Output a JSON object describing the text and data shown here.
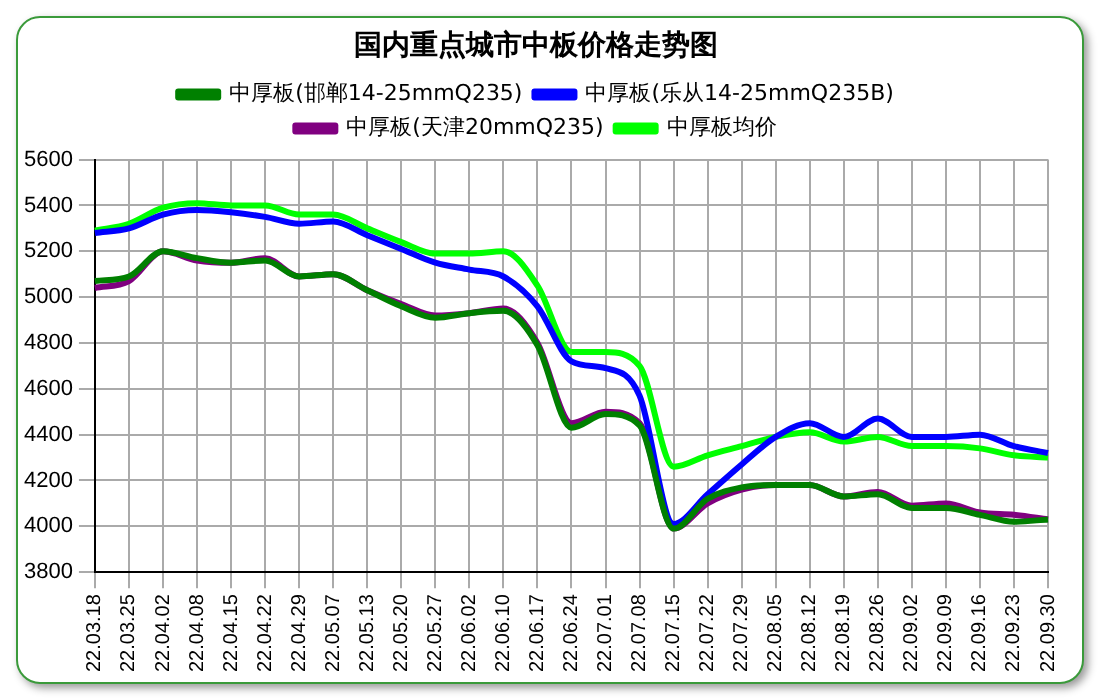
{
  "chart_data": {
    "type": "line",
    "title": "国内重点城市中板价格走势图",
    "categories": [
      "22.03.18",
      "22.03.25",
      "22.04.02",
      "22.04.08",
      "22.04.15",
      "22.04.22",
      "22.04.29",
      "22.05.07",
      "22.05.13",
      "22.05.20",
      "22.05.27",
      "22.06.02",
      "22.06.10",
      "22.06.17",
      "22.06.24",
      "22.07.01",
      "22.07.08",
      "22.07.15",
      "22.07.22",
      "22.07.29",
      "22.08.05",
      "22.08.12",
      "22.08.19",
      "22.08.26",
      "22.09.02",
      "22.09.09",
      "22.09.16",
      "22.09.23",
      "22.09.30"
    ],
    "series": [
      {
        "name": "中厚板(邯郸14-25mmQ235)",
        "color": "#008000",
        "values": [
          5070,
          5090,
          5200,
          5170,
          5150,
          5160,
          5090,
          5100,
          5030,
          4960,
          4910,
          4930,
          4940,
          4790,
          4430,
          4490,
          4440,
          3990,
          4120,
          4170,
          4180,
          4180,
          4130,
          4140,
          4080,
          4080,
          4050,
          4020,
          4030
        ]
      },
      {
        "name": "中厚板(乐从14-25mmQ235B)",
        "color": "#0000ff",
        "values": [
          5280,
          5300,
          5360,
          5380,
          5370,
          5350,
          5320,
          5330,
          5270,
          5210,
          5150,
          5120,
          5090,
          4960,
          4720,
          4690,
          4570,
          4010,
          4140,
          4270,
          4390,
          4450,
          4390,
          4470,
          4390,
          4390,
          4400,
          4350,
          4320
        ]
      },
      {
        "name": "中厚板(天津20mmQ235)",
        "color": "#800080",
        "values": [
          5040,
          5070,
          5200,
          5160,
          5150,
          5170,
          5090,
          5100,
          5030,
          4970,
          4920,
          4930,
          4950,
          4800,
          4450,
          4500,
          4450,
          3990,
          4100,
          4160,
          4180,
          4180,
          4130,
          4150,
          4090,
          4100,
          4060,
          4050,
          4030
        ]
      },
      {
        "name": "中厚板均价",
        "color": "#00ff00",
        "values": [
          5290,
          5320,
          5390,
          5410,
          5400,
          5400,
          5360,
          5360,
          5300,
          5240,
          5190,
          5190,
          5200,
          5050,
          4760,
          4760,
          4700,
          4260,
          4310,
          4350,
          4390,
          4410,
          4370,
          4390,
          4350,
          4350,
          4340,
          4310,
          4300
        ]
      }
    ],
    "ylim": [
      3800,
      5600
    ],
    "yticks": [
      3800,
      4000,
      4200,
      4400,
      4600,
      4800,
      5000,
      5200,
      5400,
      5600
    ],
    "grid": true,
    "legend": "top",
    "marker": "none",
    "line_style": "solid"
  }
}
